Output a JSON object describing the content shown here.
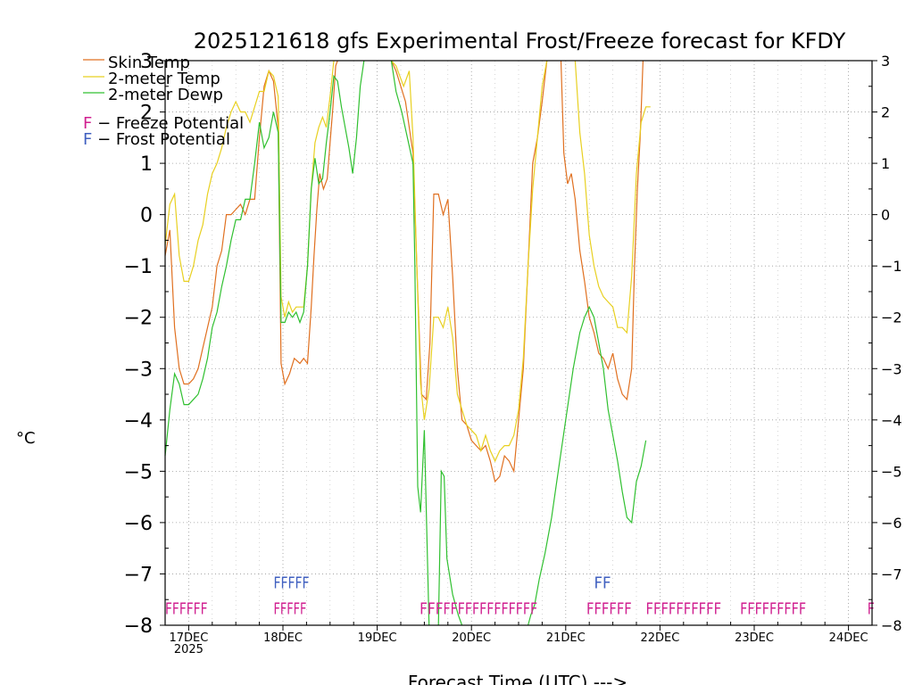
{
  "chart_data": {
    "type": "line",
    "title": "2025121618 gfs Experimental Frost/Freeze forecast for KFDY",
    "xlabel": "Forecast Time (UTC) --->",
    "ylabel": "°C",
    "ylim": [
      -8,
      3
    ],
    "xlim": [
      -0.25,
      7.25
    ],
    "yticks": [
      3,
      2,
      1,
      0,
      -1,
      -2,
      -3,
      -4,
      -5,
      -6,
      -7,
      -8
    ],
    "ytick_labels": [
      "3",
      "2",
      "1",
      "0",
      "−1",
      "−2",
      "−3",
      "−4",
      "−5",
      "−6",
      "−7",
      "−8"
    ],
    "xticks": [
      {
        "x": 0,
        "label": "17DEC",
        "sub": "2025"
      },
      {
        "x": 1,
        "label": "18DEC",
        "sub": ""
      },
      {
        "x": 2,
        "label": "19DEC",
        "sub": ""
      },
      {
        "x": 3,
        "label": "20DEC",
        "sub": ""
      },
      {
        "x": 4,
        "label": "21DEC",
        "sub": ""
      },
      {
        "x": 5,
        "label": "22DEC",
        "sub": ""
      },
      {
        "x": 6,
        "label": "23DEC",
        "sub": ""
      },
      {
        "x": 7,
        "label": "24DEC",
        "sub": ""
      }
    ],
    "grid": true,
    "legend_position": "top-left",
    "series": [
      {
        "name": "Skin Temp",
        "color": "#e07020",
        "points": [
          [
            -0.25,
            -0.8
          ],
          [
            -0.2,
            -0.3
          ],
          [
            -0.15,
            -2.2
          ],
          [
            -0.1,
            -3.0
          ],
          [
            -0.05,
            -3.3
          ],
          [
            0.0,
            -3.3
          ],
          [
            0.05,
            -3.2
          ],
          [
            0.1,
            -3.0
          ],
          [
            0.15,
            -2.6
          ],
          [
            0.2,
            -2.2
          ],
          [
            0.25,
            -1.8
          ],
          [
            0.3,
            -1.0
          ],
          [
            0.35,
            -0.7
          ],
          [
            0.4,
            0.0
          ],
          [
            0.45,
            0.0
          ],
          [
            0.5,
            0.1
          ],
          [
            0.55,
            0.2
          ],
          [
            0.6,
            0.0
          ],
          [
            0.65,
            0.3
          ],
          [
            0.7,
            0.3
          ],
          [
            0.75,
            1.5
          ],
          [
            0.8,
            2.5
          ],
          [
            0.85,
            2.8
          ],
          [
            0.9,
            2.6
          ],
          [
            0.95,
            1.7
          ],
          [
            0.98,
            -2.9
          ],
          [
            1.02,
            -3.3
          ],
          [
            1.07,
            -3.1
          ],
          [
            1.12,
            -2.8
          ],
          [
            1.18,
            -2.9
          ],
          [
            1.22,
            -2.8
          ],
          [
            1.26,
            -2.9
          ],
          [
            1.3,
            -1.8
          ],
          [
            1.33,
            -0.8
          ],
          [
            1.36,
            0.1
          ],
          [
            1.39,
            0.8
          ],
          [
            1.43,
            0.5
          ],
          [
            1.47,
            0.7
          ],
          [
            1.5,
            1.4
          ],
          [
            1.53,
            2.1
          ],
          [
            1.56,
            2.9
          ],
          [
            1.58,
            3.0
          ]
        ],
        "points2": [
          [
            2.15,
            3.0
          ],
          [
            2.2,
            2.8
          ],
          [
            2.3,
            2.2
          ],
          [
            2.38,
            1.2
          ],
          [
            2.42,
            -1.0
          ],
          [
            2.47,
            -3.5
          ],
          [
            2.52,
            -3.6
          ],
          [
            2.56,
            -2.5
          ],
          [
            2.6,
            0.4
          ],
          [
            2.65,
            0.4
          ],
          [
            2.7,
            0.0
          ],
          [
            2.75,
            0.3
          ],
          [
            2.8,
            -1.2
          ],
          [
            2.85,
            -3.0
          ],
          [
            2.9,
            -4.0
          ],
          [
            2.95,
            -4.1
          ],
          [
            3.0,
            -4.4
          ],
          [
            3.05,
            -4.5
          ],
          [
            3.1,
            -4.6
          ],
          [
            3.15,
            -4.5
          ],
          [
            3.2,
            -4.8
          ],
          [
            3.25,
            -5.2
          ],
          [
            3.3,
            -5.1
          ],
          [
            3.35,
            -4.7
          ],
          [
            3.4,
            -4.8
          ],
          [
            3.45,
            -5.0
          ],
          [
            3.5,
            -4.0
          ],
          [
            3.55,
            -3.0
          ],
          [
            3.6,
            -1.0
          ],
          [
            3.65,
            1.0
          ],
          [
            3.7,
            1.5
          ],
          [
            3.75,
            2.2
          ],
          [
            3.8,
            3.0
          ]
        ],
        "points3": [
          [
            3.95,
            3.0
          ],
          [
            3.98,
            1.2
          ],
          [
            4.02,
            0.6
          ],
          [
            4.06,
            0.8
          ],
          [
            4.1,
            0.3
          ],
          [
            4.15,
            -0.7
          ],
          [
            4.2,
            -1.3
          ],
          [
            4.25,
            -2.0
          ],
          [
            4.3,
            -2.3
          ],
          [
            4.35,
            -2.7
          ],
          [
            4.4,
            -2.8
          ],
          [
            4.45,
            -3.0
          ],
          [
            4.5,
            -2.7
          ],
          [
            4.55,
            -3.2
          ],
          [
            4.6,
            -3.5
          ],
          [
            4.65,
            -3.6
          ],
          [
            4.7,
            -3.0
          ],
          [
            4.73,
            -1.0
          ],
          [
            4.76,
            0.5
          ],
          [
            4.79,
            1.5
          ],
          [
            4.82,
            3.0
          ]
        ]
      },
      {
        "name": "2-meter Temp",
        "color": "#e8d020",
        "points": [
          [
            -0.25,
            -0.6
          ],
          [
            -0.2,
            0.2
          ],
          [
            -0.15,
            0.4
          ],
          [
            -0.1,
            -0.8
          ],
          [
            -0.05,
            -1.3
          ],
          [
            0.0,
            -1.3
          ],
          [
            0.05,
            -1.0
          ],
          [
            0.1,
            -0.5
          ],
          [
            0.15,
            -0.2
          ],
          [
            0.2,
            0.4
          ],
          [
            0.25,
            0.8
          ],
          [
            0.3,
            1.0
          ],
          [
            0.35,
            1.3
          ],
          [
            0.4,
            1.7
          ],
          [
            0.45,
            2.0
          ],
          [
            0.5,
            2.2
          ],
          [
            0.55,
            2.0
          ],
          [
            0.6,
            2.0
          ],
          [
            0.65,
            1.8
          ],
          [
            0.7,
            2.1
          ],
          [
            0.75,
            2.4
          ],
          [
            0.8,
            2.4
          ],
          [
            0.85,
            2.8
          ],
          [
            0.9,
            2.7
          ],
          [
            0.95,
            2.3
          ],
          [
            0.98,
            -1.6
          ],
          [
            1.02,
            -2.0
          ],
          [
            1.06,
            -1.7
          ],
          [
            1.1,
            -1.9
          ],
          [
            1.14,
            -1.8
          ],
          [
            1.18,
            -1.8
          ],
          [
            1.22,
            -1.8
          ],
          [
            1.26,
            -1.0
          ],
          [
            1.3,
            0.5
          ],
          [
            1.34,
            1.4
          ],
          [
            1.38,
            1.7
          ],
          [
            1.42,
            1.9
          ],
          [
            1.46,
            1.7
          ],
          [
            1.5,
            2.3
          ],
          [
            1.54,
            3.0
          ]
        ],
        "points2": [
          [
            2.15,
            3.0
          ],
          [
            2.2,
            2.9
          ],
          [
            2.28,
            2.5
          ],
          [
            2.34,
            2.8
          ],
          [
            2.38,
            1.5
          ],
          [
            2.42,
            -1.0
          ],
          [
            2.46,
            -3.3
          ],
          [
            2.5,
            -4.0
          ],
          [
            2.55,
            -3.4
          ],
          [
            2.6,
            -2.0
          ],
          [
            2.65,
            -2.0
          ],
          [
            2.7,
            -2.2
          ],
          [
            2.75,
            -1.8
          ],
          [
            2.8,
            -2.4
          ],
          [
            2.85,
            -3.5
          ],
          [
            2.9,
            -3.8
          ],
          [
            2.95,
            -4.1
          ],
          [
            3.0,
            -4.2
          ],
          [
            3.05,
            -4.3
          ],
          [
            3.1,
            -4.6
          ],
          [
            3.15,
            -4.3
          ],
          [
            3.2,
            -4.6
          ],
          [
            3.25,
            -4.8
          ],
          [
            3.3,
            -4.6
          ],
          [
            3.35,
            -4.5
          ],
          [
            3.4,
            -4.5
          ],
          [
            3.45,
            -4.3
          ],
          [
            3.5,
            -3.8
          ],
          [
            3.55,
            -2.8
          ],
          [
            3.6,
            -1.0
          ],
          [
            3.65,
            0.5
          ],
          [
            3.7,
            1.5
          ],
          [
            3.75,
            2.5
          ],
          [
            3.8,
            3.0
          ]
        ],
        "points3": [
          [
            4.1,
            3.0
          ],
          [
            4.15,
            1.6
          ],
          [
            4.2,
            0.8
          ],
          [
            4.25,
            -0.4
          ],
          [
            4.3,
            -1.0
          ],
          [
            4.35,
            -1.4
          ],
          [
            4.4,
            -1.6
          ],
          [
            4.45,
            -1.7
          ],
          [
            4.5,
            -1.8
          ],
          [
            4.55,
            -2.2
          ],
          [
            4.6,
            -2.2
          ],
          [
            4.65,
            -2.3
          ],
          [
            4.7,
            -1.2
          ],
          [
            4.75,
            0.8
          ],
          [
            4.8,
            1.8
          ],
          [
            4.85,
            2.1
          ],
          [
            4.9,
            2.1
          ]
        ]
      },
      {
        "name": "2-meter Dewp",
        "color": "#30c030",
        "points": [
          [
            -0.25,
            -4.7
          ],
          [
            -0.2,
            -3.8
          ],
          [
            -0.15,
            -3.1
          ],
          [
            -0.1,
            -3.3
          ],
          [
            -0.05,
            -3.7
          ],
          [
            0.0,
            -3.7
          ],
          [
            0.05,
            -3.6
          ],
          [
            0.1,
            -3.5
          ],
          [
            0.15,
            -3.2
          ],
          [
            0.2,
            -2.8
          ],
          [
            0.25,
            -2.2
          ],
          [
            0.3,
            -1.9
          ],
          [
            0.35,
            -1.4
          ],
          [
            0.4,
            -1.0
          ],
          [
            0.45,
            -0.5
          ],
          [
            0.5,
            -0.1
          ],
          [
            0.55,
            -0.1
          ],
          [
            0.6,
            0.3
          ],
          [
            0.65,
            0.3
          ],
          [
            0.7,
            1.0
          ],
          [
            0.75,
            1.8
          ],
          [
            0.8,
            1.3
          ],
          [
            0.85,
            1.5
          ],
          [
            0.9,
            2.0
          ],
          [
            0.95,
            1.6
          ],
          [
            0.98,
            -2.1
          ],
          [
            1.02,
            -2.1
          ],
          [
            1.06,
            -1.9
          ],
          [
            1.1,
            -2.0
          ],
          [
            1.14,
            -1.9
          ],
          [
            1.18,
            -2.1
          ],
          [
            1.22,
            -1.9
          ],
          [
            1.26,
            -1.0
          ],
          [
            1.3,
            0.5
          ],
          [
            1.34,
            1.1
          ],
          [
            1.38,
            0.6
          ],
          [
            1.42,
            0.7
          ],
          [
            1.46,
            1.4
          ],
          [
            1.5,
            2.0
          ],
          [
            1.54,
            2.7
          ],
          [
            1.58,
            2.6
          ],
          [
            1.62,
            2.1
          ],
          [
            1.66,
            1.7
          ],
          [
            1.7,
            1.3
          ],
          [
            1.74,
            0.8
          ],
          [
            1.78,
            1.5
          ],
          [
            1.82,
            2.5
          ],
          [
            1.86,
            3.0
          ]
        ],
        "points2": [
          [
            2.15,
            3.0
          ],
          [
            2.2,
            2.4
          ],
          [
            2.26,
            2.0
          ],
          [
            2.32,
            1.5
          ],
          [
            2.38,
            1.0
          ],
          [
            2.4,
            -1.0
          ],
          [
            2.43,
            -5.3
          ],
          [
            2.46,
            -5.8
          ],
          [
            2.5,
            -4.2
          ],
          [
            2.55,
            -8.0
          ]
        ],
        "points2b": [
          [
            2.65,
            -8.0
          ],
          [
            2.68,
            -5.0
          ],
          [
            2.71,
            -5.1
          ],
          [
            2.74,
            -6.7
          ],
          [
            2.8,
            -7.4
          ],
          [
            2.86,
            -7.8
          ],
          [
            2.9,
            -8.0
          ]
        ],
        "points3": [
          [
            3.6,
            -8.0
          ],
          [
            3.63,
            -7.8
          ],
          [
            3.67,
            -7.6
          ],
          [
            3.72,
            -7.1
          ],
          [
            3.78,
            -6.6
          ],
          [
            3.85,
            -5.9
          ],
          [
            3.92,
            -5.0
          ],
          [
            4.0,
            -4.0
          ],
          [
            4.08,
            -3.0
          ],
          [
            4.15,
            -2.3
          ],
          [
            4.2,
            -2.0
          ],
          [
            4.25,
            -1.8
          ],
          [
            4.3,
            -2.0
          ],
          [
            4.35,
            -2.5
          ],
          [
            4.4,
            -3.0
          ],
          [
            4.45,
            -3.8
          ],
          [
            4.5,
            -4.3
          ],
          [
            4.55,
            -4.8
          ],
          [
            4.6,
            -5.4
          ],
          [
            4.65,
            -5.9
          ],
          [
            4.7,
            -6.0
          ],
          [
            4.75,
            -5.2
          ],
          [
            4.8,
            -4.9
          ],
          [
            4.85,
            -4.4
          ]
        ]
      }
    ],
    "freeze_potential": {
      "label": "F − Freeze Potential",
      "color": "#d02090",
      "groups": [
        {
          "start": -0.25,
          "end": 0.2,
          "letter": "F"
        },
        {
          "start": 0.9,
          "end": 1.25,
          "letter": "F"
        },
        {
          "start": 2.45,
          "end": 2.7,
          "letter": "F"
        },
        {
          "start": 2.7,
          "end": 3.7,
          "letter": "F"
        },
        {
          "start": 4.22,
          "end": 4.7,
          "letter": "F"
        },
        {
          "start": 4.85,
          "end": 5.65,
          "letter": "F"
        },
        {
          "start": 5.85,
          "end": 6.55,
          "letter": "F"
        },
        {
          "start": 7.2,
          "end": 7.25,
          "letter": "F"
        }
      ]
    },
    "frost_potential": {
      "label": "F − Frost Potential",
      "color": "#4060c0",
      "groups": [
        {
          "start": 0.9,
          "end": 1.28,
          "letter": "F"
        },
        {
          "start": 4.3,
          "end": 4.48,
          "letter": "F"
        }
      ]
    }
  }
}
